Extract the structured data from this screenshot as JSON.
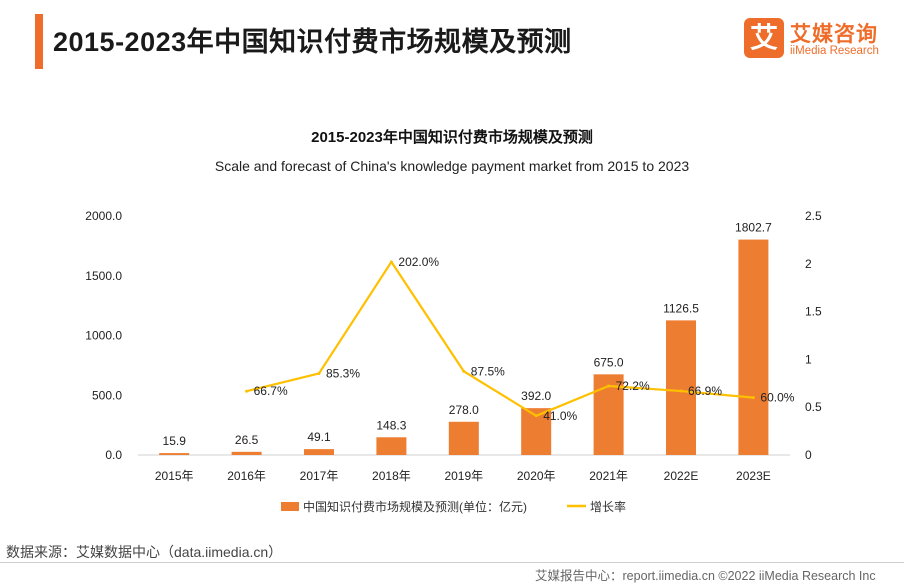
{
  "page": {
    "title": "2015-2023年中国知识付费市场规模及预测",
    "source": "数据来源：艾媒数据中心（data.iimedia.cn）",
    "footer": "艾媒报告中心：report.iimedia.cn  ©2022  iiMedia Research  Inc"
  },
  "logo": {
    "glyph": "艾",
    "name_cn": "艾媒咨询",
    "name_en": "iiMedia Research"
  },
  "colors": {
    "accent": "#ee6d2a",
    "bar": "#ed7d31",
    "line": "#ffc000"
  },
  "chart_data": {
    "type": "bar",
    "title": "2015-2023年中国知识付费市场规模及预测",
    "subtitle": "Scale and forecast of China's knowledge payment market from 2015 to 2023",
    "categories": [
      "2015年",
      "2016年",
      "2017年",
      "2018年",
      "2019年",
      "2020年",
      "2021年",
      "2022E",
      "2023E"
    ],
    "series": [
      {
        "name": "中国知识付费市场规模及预测(单位：亿元)",
        "type": "bar",
        "axis": "left",
        "values": [
          15.9,
          26.5,
          49.1,
          148.3,
          278.0,
          392.0,
          675.0,
          1126.5,
          1802.7
        ],
        "labels": [
          "15.9",
          "26.5",
          "49.1",
          "148.3",
          "278.0",
          "392.0",
          "675.0",
          "1126.5",
          "1802.7"
        ]
      },
      {
        "name": "增长率",
        "type": "line",
        "axis": "right",
        "values": [
          null,
          0.667,
          0.853,
          2.02,
          0.875,
          0.41,
          0.722,
          0.669,
          0.6
        ],
        "labels": [
          "",
          "66.7%",
          "85.3%",
          "202.0%",
          "87.5%",
          "41.0%",
          "72.2%",
          "66.9%",
          "60.0%"
        ]
      }
    ],
    "y_left": {
      "ylim": [
        0,
        2000
      ],
      "ticks": [
        0,
        500,
        1000,
        1500,
        2000
      ],
      "tick_labels": [
        "0.0",
        "500.0",
        "1000.0",
        "1500.0",
        "2000.0"
      ]
    },
    "y_right": {
      "ylim": [
        0,
        2.5
      ],
      "ticks": [
        0,
        0.5,
        1,
        1.5,
        2,
        2.5
      ],
      "tick_labels": [
        "0",
        "0.5",
        "1",
        "1.5",
        "2",
        "2.5"
      ]
    },
    "grid": false,
    "legend_position": "bottom"
  }
}
